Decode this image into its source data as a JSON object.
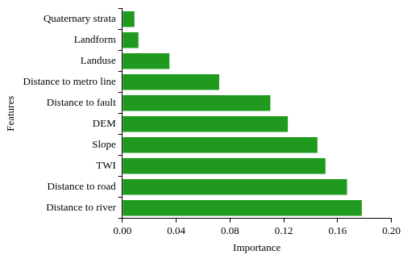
{
  "chart_data": {
    "type": "bar",
    "orientation": "horizontal",
    "x_label": "Importance",
    "y_label": "Features",
    "categories": [
      "Quaternary strata",
      "Landform",
      "Landuse",
      "Distance to metro line",
      "Distance to fault",
      "DEM",
      "Slope",
      "TWI",
      "Distance to road",
      "Distance to river"
    ],
    "values": [
      0.009,
      0.012,
      0.035,
      0.072,
      0.11,
      0.123,
      0.145,
      0.151,
      0.167,
      0.178
    ],
    "color": "#1f9a1f",
    "xlim": [
      0,
      0.2
    ],
    "xticks": [
      {
        "value": 0,
        "label": "0.00"
      },
      0.04,
      0.08,
      0.12,
      0.16,
      {
        "value": 0.2,
        "label": "0.20"
      }
    ],
    "grid": false
  }
}
